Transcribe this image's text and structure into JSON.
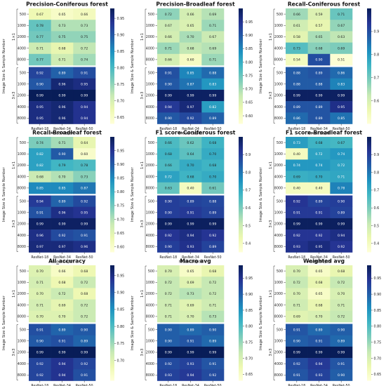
{
  "figure": {
    "ylabel": "Image Size & Sample Number",
    "xlabel": "Model Depth",
    "columns": [
      "ResNet-18",
      "ResNet-34",
      "ResNet-50"
    ],
    "rows": [
      "500",
      "1000",
      "2000",
      "4000",
      "8000",
      "500",
      "1000",
      "2000",
      "4000",
      "8000"
    ],
    "groups": [
      "1×1",
      "3×3"
    ]
  },
  "chart_data": [
    {
      "type": "heatmap",
      "title": "Precision-Coniferous forest",
      "values": [
        [
          0.67,
          0.65,
          0.66
        ],
        [
          0.78,
          0.73,
          0.73
        ],
        [
          0.77,
          0.75,
          0.75
        ],
        [
          0.71,
          0.68,
          0.72
        ],
        [
          0.77,
          0.71,
          0.74
        ],
        [
          0.92,
          0.89,
          0.91
        ],
        [
          0.9,
          0.96,
          0.95
        ],
        [
          0.99,
          0.99,
          0.99
        ],
        [
          0.95,
          0.96,
          0.94
        ],
        [
          0.95,
          0.96,
          0.94
        ]
      ],
      "colorbar": {
        "min": 0.63,
        "max": 0.98,
        "ticks": [
          "0.95",
          "0.90",
          "0.85",
          "0.80",
          "0.75",
          "0.70",
          "0.65"
        ]
      }
    },
    {
      "type": "heatmap",
      "title": "Precision-Broadleaf forest",
      "values": [
        [
          0.72,
          0.66,
          0.69
        ],
        [
          0.67,
          0.65,
          0.71
        ],
        [
          0.66,
          0.7,
          0.67
        ],
        [
          0.71,
          0.68,
          0.69
        ],
        [
          0.66,
          0.6,
          0.71
        ],
        [
          0.91,
          0.85,
          0.88
        ],
        [
          0.9,
          0.87,
          0.83
        ],
        [
          0.99,
          0.99,
          0.99
        ],
        [
          0.94,
          0.97,
          0.82
        ],
        [
          0.9,
          0.92,
          0.89
        ]
      ],
      "colorbar": {
        "min": 0.57,
        "max": 1.0,
        "ticks": [
          "0.95",
          "0.90",
          "0.85",
          "0.80",
          "0.75",
          "0.70",
          "0.65",
          "0.60"
        ]
      }
    },
    {
      "type": "heatmap",
      "title": "Recall-Coniferous forest",
      "values": [
        [
          0.66,
          0.59,
          0.71
        ],
        [
          0.61,
          0.57,
          0.67
        ],
        [
          0.58,
          0.65,
          0.63
        ],
        [
          0.73,
          0.68,
          0.69
        ],
        [
          0.54,
          0.9,
          0.51
        ],
        [
          0.88,
          0.89,
          0.86
        ],
        [
          0.88,
          0.88,
          0.83
        ],
        [
          0.99,
          0.99,
          0.99
        ],
        [
          0.89,
          0.89,
          0.95
        ],
        [
          0.86,
          0.89,
          0.85
        ]
      ],
      "colorbar": {
        "min": 0.5,
        "max": 1.0,
        "ticks": [
          "0.9",
          "0.8",
          "0.7",
          "0.6"
        ]
      }
    },
    {
      "type": "heatmap",
      "title": "Recall-Broadleaf forest",
      "values": [
        [
          0.74,
          0.71,
          0.64
        ],
        [
          0.82,
          0.9,
          0.6
        ],
        [
          0.82,
          0.79,
          0.78
        ],
        [
          0.68,
          0.7,
          0.73
        ],
        [
          0.85,
          0.85,
          0.87
        ],
        [
          0.94,
          0.89,
          0.92
        ],
        [
          0.91,
          0.96,
          0.95
        ],
        [
          0.99,
          0.99,
          0.99
        ],
        [
          0.96,
          0.92,
          0.91
        ],
        [
          0.97,
          0.97,
          0.96
        ]
      ],
      "colorbar": {
        "min": 0.58,
        "max": 1.0,
        "ticks": [
          "0.95",
          "0.90",
          "0.85",
          "0.80",
          "0.75",
          "0.70",
          "0.65",
          "0.60"
        ]
      }
    },
    {
      "type": "heatmap",
      "title": "F1 score-Coniferous forest",
      "values": [
        [
          0.66,
          0.62,
          0.68
        ],
        [
          0.68,
          0.64,
          0.7
        ],
        [
          0.66,
          0.7,
          0.68
        ],
        [
          0.72,
          0.68,
          0.7
        ],
        [
          0.63,
          0.4,
          0.61
        ],
        [
          0.9,
          0.89,
          0.88
        ],
        [
          0.9,
          0.91,
          0.89
        ],
        [
          0.99,
          0.99,
          0.99
        ],
        [
          0.92,
          0.94,
          0.92
        ],
        [
          0.9,
          0.93,
          0.89
        ]
      ],
      "colorbar": {
        "min": 0.35,
        "max": 1.0,
        "ticks": [
          "0.9",
          "0.8",
          "0.7",
          "0.6",
          "0.5",
          "0.4"
        ]
      }
    },
    {
      "type": "heatmap",
      "title": "F1 score-Broadleaf forest",
      "values": [
        [
          0.73,
          0.68,
          0.67
        ],
        [
          0.4,
          0.72,
          0.74
        ],
        [
          0.74,
          0.74,
          0.72
        ],
        [
          0.69,
          0.7,
          0.71
        ],
        [
          0.4,
          0.4,
          0.78
        ],
        [
          0.92,
          0.89,
          0.9
        ],
        [
          0.91,
          0.91,
          0.89
        ],
        [
          0.99,
          0.99,
          0.99
        ],
        [
          0.92,
          0.92,
          0.94
        ],
        [
          0.93,
          0.95,
          0.92
        ]
      ],
      "colorbar": {
        "min": 0.35,
        "max": 1.0,
        "ticks": [
          "0.9",
          "0.8",
          "0.7",
          "0.6",
          "0.5",
          "0.4"
        ]
      }
    },
    {
      "type": "heatmap",
      "title": "All_accuracy",
      "values": [
        [
          0.7,
          0.66,
          0.68
        ],
        [
          0.71,
          0.68,
          0.72
        ],
        [
          0.7,
          0.72,
          0.68
        ],
        [
          0.71,
          0.69,
          0.72
        ],
        [
          0.7,
          0.7,
          0.72
        ],
        [
          0.91,
          0.89,
          0.9
        ],
        [
          0.9,
          0.91,
          0.89
        ],
        [
          0.99,
          0.99,
          0.99
        ],
        [
          0.92,
          0.94,
          0.92
        ],
        [
          0.92,
          0.94,
          0.91
        ]
      ],
      "colorbar": {
        "min": 0.64,
        "max": 0.98,
        "ticks": [
          "0.95",
          "0.90",
          "0.85",
          "0.80",
          "0.75",
          "0.70"
        ]
      }
    },
    {
      "type": "heatmap",
      "title": "Macro avg",
      "values": [
        [
          0.7,
          0.65,
          0.68
        ],
        [
          0.72,
          0.69,
          0.72
        ],
        [
          0.72,
          0.73,
          0.72
        ],
        [
          0.71,
          0.69,
          0.71
        ],
        [
          0.71,
          0.7,
          0.73
        ],
        [
          0.9,
          0.89,
          0.9
        ],
        [
          0.9,
          0.91,
          0.89
        ],
        [
          0.99,
          0.99,
          0.99
        ],
        [
          0.92,
          0.93,
          0.91
        ],
        [
          0.93,
          0.94,
          0.92
        ]
      ],
      "colorbar": {
        "min": 0.63,
        "max": 0.99,
        "ticks": [
          "0.95",
          "0.90",
          "0.85",
          "0.80",
          "0.75",
          "0.70",
          "0.65"
        ]
      }
    },
    {
      "type": "heatmap",
      "title": "Weighted avg",
      "values": [
        [
          0.7,
          0.65,
          0.68
        ],
        [
          0.72,
          0.68,
          0.72
        ],
        [
          0.7,
          0.65,
          0.7
        ],
        [
          0.71,
          0.68,
          0.71
        ],
        [
          0.69,
          0.7,
          0.72
        ],
        [
          0.91,
          0.89,
          0.9
        ],
        [
          0.9,
          0.91,
          0.89
        ],
        [
          0.99,
          0.99,
          0.99
        ],
        [
          0.92,
          0.94,
          0.91
        ],
        [
          0.91,
          0.93,
          0.9
        ]
      ],
      "colorbar": {
        "min": 0.63,
        "max": 0.99,
        "ticks": [
          "0.95",
          "0.90",
          "0.85",
          "0.80",
          "0.75",
          "0.70",
          "0.65"
        ]
      }
    }
  ]
}
